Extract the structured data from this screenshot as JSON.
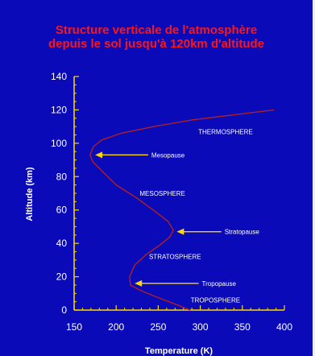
{
  "title_lines": [
    "Structure verticale de l'atmosphère",
    "depuis le sol jusqu'à 120km d'altitude"
  ],
  "colors": {
    "background": "#0a0ab8",
    "title": "#ff1515",
    "axes": "#ffd700",
    "curve": "#b02020",
    "arrows": "#ffd700",
    "text": "#ffffff"
  },
  "chart_data": {
    "type": "line",
    "title": "Structure verticale de l'atmosphère depuis le sol jusqu'à 120km d'altitude",
    "xlabel": "Temperature (K)",
    "ylabel": "Altitude (km)",
    "xlim": [
      150,
      400
    ],
    "ylim": [
      0,
      140
    ],
    "xticks": [
      150,
      200,
      250,
      300,
      350,
      400
    ],
    "yticks": [
      0,
      20,
      40,
      60,
      80,
      100,
      120,
      140
    ],
    "grid": false,
    "series": [
      {
        "points": [
          {
            "x": 288,
            "y": 0
          },
          {
            "x": 268,
            "y": 4
          },
          {
            "x": 247,
            "y": 8
          },
          {
            "x": 228,
            "y": 12
          },
          {
            "x": 217,
            "y": 15
          },
          {
            "x": 216,
            "y": 20
          },
          {
            "x": 222,
            "y": 27
          },
          {
            "x": 235,
            "y": 33
          },
          {
            "x": 252,
            "y": 39
          },
          {
            "x": 264,
            "y": 44
          },
          {
            "x": 268,
            "y": 48
          },
          {
            "x": 262,
            "y": 53
          },
          {
            "x": 244,
            "y": 60
          },
          {
            "x": 222,
            "y": 68
          },
          {
            "x": 200,
            "y": 75
          },
          {
            "x": 184,
            "y": 83
          },
          {
            "x": 172,
            "y": 89
          },
          {
            "x": 169,
            "y": 93
          },
          {
            "x": 173,
            "y": 98
          },
          {
            "x": 183,
            "y": 102
          },
          {
            "x": 206,
            "y": 106
          },
          {
            "x": 245,
            "y": 110
          },
          {
            "x": 290,
            "y": 114
          },
          {
            "x": 340,
            "y": 117
          },
          {
            "x": 388,
            "y": 120
          }
        ]
      }
    ],
    "region_labels": [
      {
        "text": "THERMOSPHERE",
        "x": 330,
        "y": 107
      },
      {
        "text": "MESOSPHERE",
        "x": 255,
        "y": 70
      },
      {
        "text": "STRATOSPHERE",
        "x": 270,
        "y": 32
      },
      {
        "text": "TROPOSPHERE",
        "x": 318,
        "y": 6
      }
    ],
    "annotations": [
      {
        "text": "Mesopause",
        "x_from": 238,
        "x_to": 175,
        "y": 93
      },
      {
        "text": "Stratopause",
        "x_from": 325,
        "x_to": 272,
        "y": 47
      },
      {
        "text": "Tropopause",
        "x_from": 298,
        "x_to": 222,
        "y": 16
      }
    ]
  }
}
